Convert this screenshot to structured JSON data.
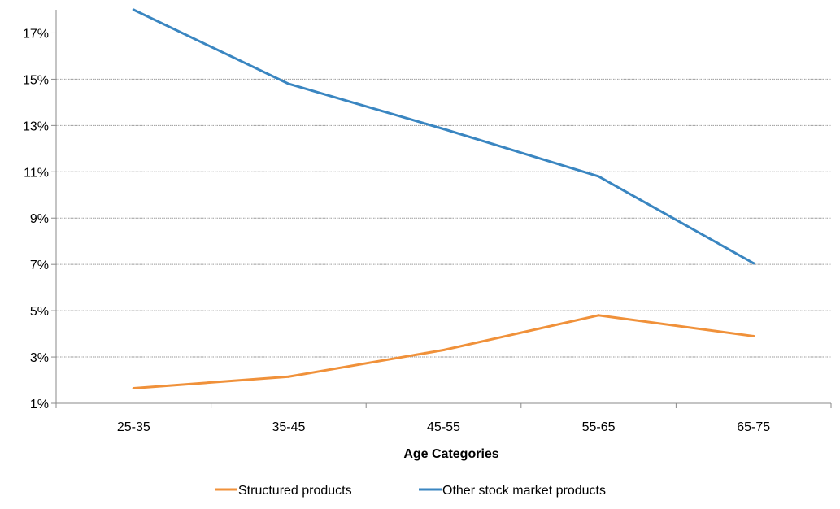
{
  "chart_data": {
    "type": "line",
    "title": "",
    "xlabel": "Age Categories",
    "ylabel": "",
    "categories": [
      "25-35",
      "35-45",
      "45-55",
      "55-65",
      "65-75"
    ],
    "ylim": [
      1,
      18
    ],
    "yticks": [
      1,
      3,
      5,
      7,
      9,
      11,
      13,
      15,
      17
    ],
    "ytick_labels": [
      "1%",
      "3%",
      "5%",
      "7%",
      "9%",
      "11%",
      "13%",
      "15%",
      "17%"
    ],
    "grid": "horizontal",
    "legend_position": "bottom",
    "series": [
      {
        "name": "Structured products",
        "color": "#F0913A",
        "values": [
          1.65,
          2.15,
          3.3,
          4.8,
          3.9
        ]
      },
      {
        "name": "Other stock market products",
        "color": "#3A86C1",
        "values": [
          18.0,
          14.8,
          12.85,
          10.8,
          7.05
        ]
      }
    ]
  }
}
